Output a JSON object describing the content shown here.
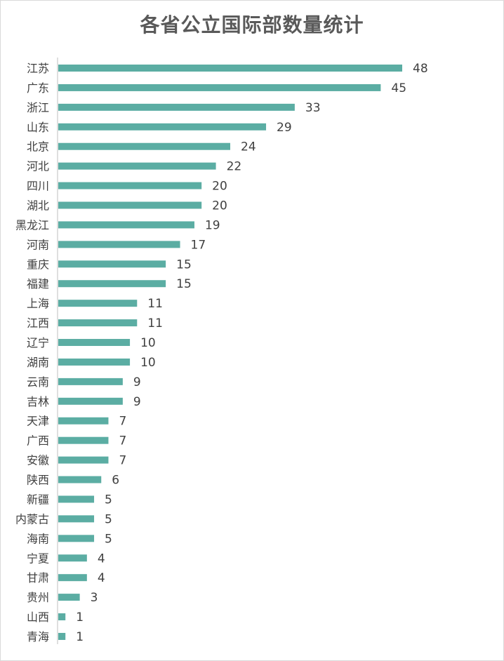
{
  "chart_data": {
    "type": "bar",
    "orientation": "horizontal",
    "title": "各省公立国际部数量统计",
    "xlabel": "",
    "ylabel": "",
    "xlim": [
      0,
      48
    ],
    "grid": false,
    "legend": "none",
    "bar_color": "#5BADA3",
    "categories": [
      "江苏",
      "广东",
      "浙江",
      "山东",
      "北京",
      "河北",
      "四川",
      "湖北",
      "黑龙江",
      "河南",
      "重庆",
      "福建",
      "上海",
      "江西",
      "辽宁",
      "湖南",
      "云南",
      "吉林",
      "天津",
      "广西",
      "安徽",
      "陕西",
      "新疆",
      "内蒙古",
      "海南",
      "宁夏",
      "甘肃",
      "贵州",
      "山西",
      "青海"
    ],
    "values": [
      48,
      45,
      33,
      29,
      24,
      22,
      20,
      20,
      19,
      17,
      15,
      15,
      11,
      11,
      10,
      10,
      9,
      9,
      7,
      7,
      7,
      6,
      5,
      5,
      5,
      4,
      4,
      3,
      1,
      1
    ]
  }
}
